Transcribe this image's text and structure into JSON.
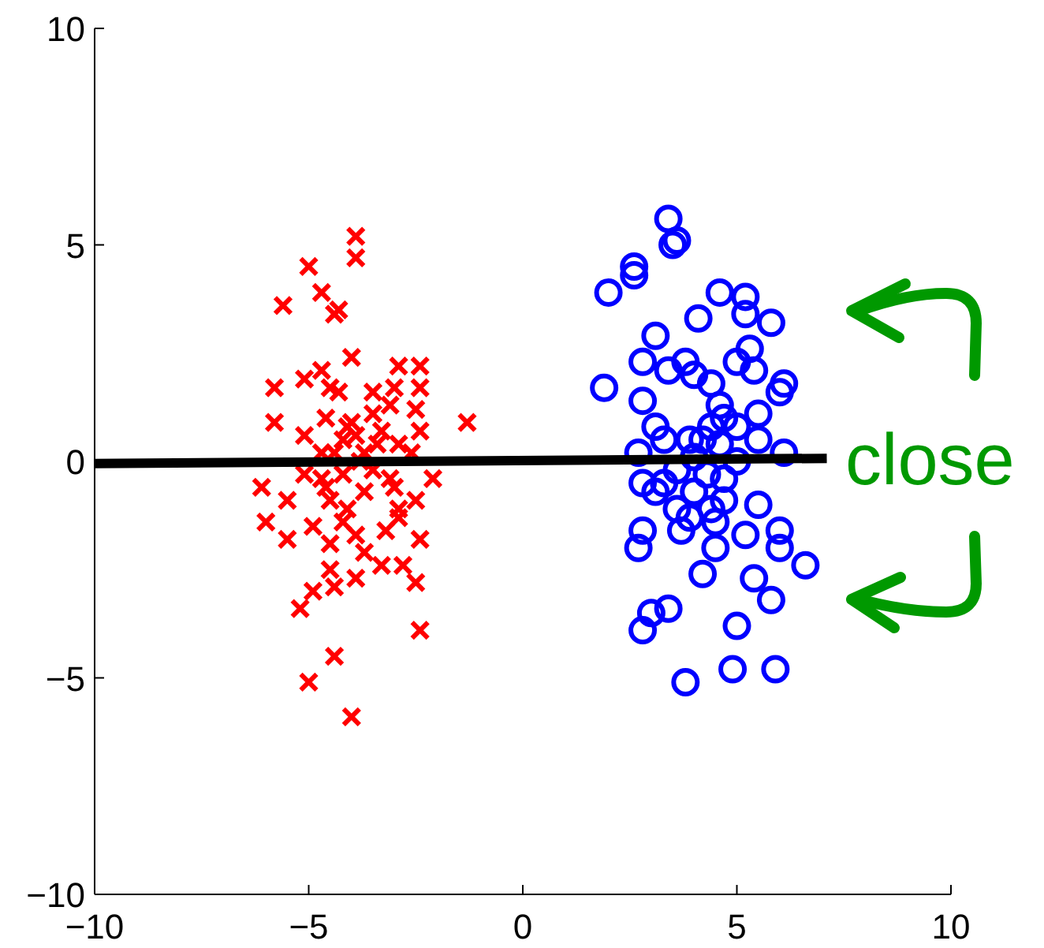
{
  "chart_data": {
    "type": "scatter",
    "xlim": [
      -10,
      10
    ],
    "ylim": [
      -10,
      10
    ],
    "xticks": [
      {
        "value": -10,
        "label": "−10"
      },
      {
        "value": -5,
        "label": "−5"
      },
      0,
      5,
      10
    ],
    "yticks": [
      {
        "value": -10,
        "label": "−10"
      },
      {
        "value": -5,
        "label": "−5"
      },
      0,
      5,
      10
    ],
    "grid": false,
    "annotations": [
      "close"
    ],
    "series": [
      {
        "marker": "cross",
        "color": "#ff0000",
        "x": [
          -3.9,
          -3.9,
          -5.0,
          -4.7,
          -5.6,
          -4.4,
          -4.3,
          -4.0,
          -2.9,
          -2.4,
          -5.1,
          -4.7,
          -5.8,
          -4.5,
          -4.3,
          -3.5,
          -3.0,
          -2.4,
          -1.3,
          -5.8,
          -4.6,
          -4.1,
          -3.5,
          -3.1,
          -2.5,
          -5.1,
          -2.4,
          -3.9,
          -4.2,
          -3.4,
          -2.9,
          -4.7,
          -2.6,
          -3.7,
          -4.4,
          -6.1,
          -5.5,
          -6.0,
          -5.5,
          -5.1,
          -4.7,
          -4.5,
          -3.7,
          -3.1,
          -2.1,
          -2.5,
          -2.9,
          -4.2,
          -4.9,
          -3.9,
          -3.2,
          -2.4,
          -4.5,
          -3.7,
          -3.3,
          -2.8,
          -2.5,
          -3.9,
          -4.5,
          -4.4,
          -4.9,
          -5.2,
          -2.4,
          -4.4,
          -5.0,
          -4.0,
          -4.1,
          -2.9,
          -3.8,
          -4.2,
          -3.5,
          -4.0,
          -3.3,
          -4.6,
          -3.0
        ],
        "values": [
          5.2,
          4.7,
          4.5,
          3.9,
          3.6,
          3.4,
          3.5,
          2.4,
          2.2,
          2.2,
          1.9,
          2.1,
          1.7,
          1.7,
          1.6,
          1.6,
          1.7,
          1.7,
          0.9,
          0.9,
          1.0,
          0.8,
          1.1,
          1.3,
          1.2,
          0.6,
          0.7,
          0.6,
          0.5,
          0.4,
          0.4,
          0.2,
          0.2,
          0.2,
          0.2,
          -0.6,
          -0.9,
          -1.4,
          -1.8,
          -0.3,
          -0.4,
          -0.9,
          -0.7,
          -0.4,
          -0.4,
          -0.9,
          -1.3,
          -1.4,
          -1.5,
          -1.7,
          -1.6,
          -1.8,
          -1.9,
          -2.1,
          -2.4,
          -2.4,
          -2.8,
          -2.7,
          -2.5,
          -2.9,
          -3.0,
          -3.4,
          -3.9,
          -4.5,
          -5.1,
          -5.9,
          -1.1,
          -1.1,
          0.0,
          -0.3,
          -0.2,
          0.9,
          0.7,
          -0.6,
          -0.6
        ]
      },
      {
        "marker": "circle",
        "color": "#0000ff",
        "x": [
          3.4,
          3.6,
          3.5,
          2.6,
          2.6,
          2.0,
          4.6,
          5.2,
          5.2,
          5.8,
          4.1,
          3.1,
          2.8,
          3.4,
          3.8,
          4.0,
          5.0,
          5.3,
          5.4,
          6.1,
          6.0,
          1.9,
          2.8,
          4.4,
          4.6,
          5.5,
          3.1,
          4.7,
          4.4,
          5.0,
          5.5,
          3.9,
          3.3,
          2.7,
          6.1,
          4.6,
          2.8,
          3.1,
          4.0,
          4.7,
          5.5,
          3.6,
          4.4,
          2.8,
          2.7,
          3.7,
          4.5,
          5.2,
          6.0,
          6.0,
          6.6,
          4.2,
          5.4,
          5.8,
          3.4,
          3.0,
          2.8,
          5.0,
          3.8,
          4.9,
          5.9,
          4.0,
          4.3,
          3.6,
          4.7,
          3.3,
          5.0,
          4.2,
          3.9,
          4.5
        ],
        "values": [
          5.6,
          5.1,
          5.0,
          4.5,
          4.3,
          3.9,
          3.9,
          3.8,
          3.4,
          3.2,
          3.3,
          2.9,
          2.3,
          2.1,
          2.3,
          2.0,
          2.3,
          2.6,
          2.1,
          1.8,
          1.6,
          1.7,
          1.4,
          1.8,
          1.3,
          1.1,
          0.8,
          1.0,
          0.8,
          0.8,
          0.5,
          0.5,
          0.5,
          0.2,
          0.2,
          0.4,
          -0.5,
          -0.7,
          -0.7,
          -0.9,
          -1.0,
          -1.1,
          -1.1,
          -1.6,
          -2.0,
          -1.6,
          -2.0,
          -1.7,
          -1.6,
          -2.0,
          -2.4,
          -2.6,
          -2.7,
          -3.2,
          -3.4,
          -3.5,
          -3.9,
          -3.8,
          -5.1,
          -4.8,
          -4.8,
          0.1,
          -0.3,
          -0.2,
          -0.4,
          -0.5,
          0.0,
          0.5,
          -1.3,
          -1.4
        ]
      },
      {
        "type": "line",
        "marker": "none",
        "color": "#000000",
        "x": [
          -10,
          7.1
        ],
        "values": [
          -0.05,
          0.07
        ]
      }
    ]
  }
}
